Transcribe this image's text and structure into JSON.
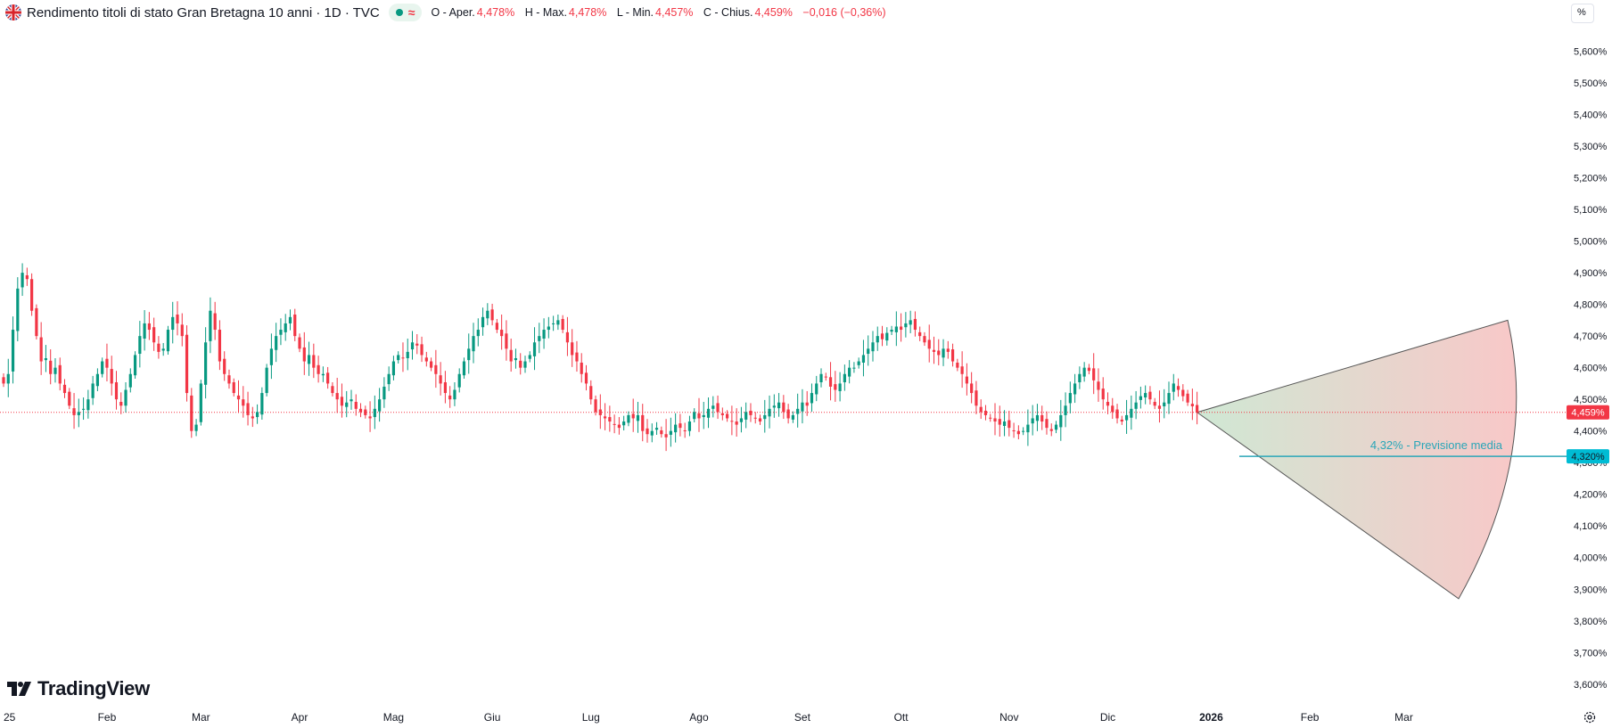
{
  "header": {
    "title": "Rendimento titoli di stato Gran Bretagna 10 anni · 1D · TVC",
    "approx_symbol": "≈",
    "ohlc": {
      "open_label": "O - Aper.",
      "open_value": "4,478%",
      "high_label": "H - Max.",
      "high_value": "4,478%",
      "low_label": "L - Min.",
      "low_value": "4,457%",
      "close_label": "C - Chius.",
      "close_value": "4,459%",
      "change": "−0,016 (−0,36%)"
    }
  },
  "unit_button": "%",
  "brand": "TradingView",
  "colors": {
    "up": "#089981",
    "down": "#f23645",
    "forecast": "#2aa6b8",
    "label_bg": "#00bcd4"
  },
  "chart_data": {
    "type": "candlestick",
    "y_axis": {
      "min": 3.55,
      "max": 5.65,
      "ticks": [
        "5,600%",
        "5,500%",
        "5,400%",
        "5,300%",
        "5,200%",
        "5,100%",
        "5,000%",
        "4,900%",
        "4,800%",
        "4,700%",
        "4,600%",
        "4,500%",
        "4,400%",
        "4,300%",
        "4,200%",
        "4,100%",
        "4,000%",
        "3,900%",
        "3,800%",
        "3,700%",
        "3,600%"
      ]
    },
    "x_axis": {
      "labels": [
        {
          "text": "25",
          "pos": 0
        },
        {
          "text": "Feb",
          "pos": 22
        },
        {
          "text": "Mar",
          "pos": 42
        },
        {
          "text": "Apr",
          "pos": 63
        },
        {
          "text": "Mag",
          "pos": 83
        },
        {
          "text": "Giu",
          "pos": 104
        },
        {
          "text": "Lug",
          "pos": 125
        },
        {
          "text": "Ago",
          "pos": 148
        },
        {
          "text": "Set",
          "pos": 170
        },
        {
          "text": "Ott",
          "pos": 191
        },
        {
          "text": "Nov",
          "pos": 214
        },
        {
          "text": "Dic",
          "pos": 235
        },
        {
          "text": "2026",
          "pos": 257
        },
        {
          "text": "Feb",
          "pos": 278
        },
        {
          "text": "Mar",
          "pos": 298
        }
      ],
      "max_index": 322
    },
    "closes": [
      4.55,
      4.58,
      4.72,
      4.85,
      4.9,
      4.88,
      4.78,
      4.7,
      4.62,
      4.63,
      4.58,
      4.6,
      4.55,
      4.52,
      4.48,
      4.45,
      4.46,
      4.47,
      4.5,
      4.55,
      4.58,
      4.62,
      4.6,
      4.55,
      4.5,
      4.48,
      4.53,
      4.58,
      4.64,
      4.7,
      4.74,
      4.72,
      4.68,
      4.65,
      4.66,
      4.72,
      4.76,
      4.74,
      4.7,
      4.52,
      4.4,
      4.42,
      4.55,
      4.68,
      4.78,
      4.72,
      4.62,
      4.58,
      4.55,
      4.52,
      4.5,
      4.48,
      4.45,
      4.44,
      4.46,
      4.52,
      4.6,
      4.66,
      4.7,
      4.72,
      4.74,
      4.76,
      4.7,
      4.66,
      4.62,
      4.64,
      4.6,
      4.58,
      4.58,
      4.55,
      4.52,
      4.5,
      4.48,
      4.49,
      4.5,
      4.47,
      4.46,
      4.45,
      4.44,
      4.47,
      4.5,
      4.54,
      4.58,
      4.62,
      4.64,
      4.63,
      4.65,
      4.68,
      4.67,
      4.64,
      4.62,
      4.6,
      4.58,
      4.55,
      4.52,
      4.5,
      4.53,
      4.58,
      4.62,
      4.66,
      4.7,
      4.72,
      4.76,
      4.78,
      4.75,
      4.72,
      4.7,
      4.66,
      4.62,
      4.63,
      4.6,
      4.62,
      4.64,
      4.68,
      4.7,
      4.72,
      4.73,
      4.74,
      4.75,
      4.72,
      4.68,
      4.64,
      4.62,
      4.58,
      4.55,
      4.5,
      4.46,
      4.45,
      4.44,
      4.43,
      4.42,
      4.41,
      4.43,
      4.45,
      4.44,
      4.45,
      4.4,
      4.39,
      4.4,
      4.41,
      4.39,
      4.38,
      4.4,
      4.42,
      4.41,
      4.4,
      4.43,
      4.46,
      4.44,
      4.45,
      4.47,
      4.48,
      4.46,
      4.45,
      4.44,
      4.43,
      4.42,
      4.44,
      4.46,
      4.45,
      4.44,
      4.43,
      4.45,
      4.47,
      4.48,
      4.49,
      4.46,
      4.44,
      4.45,
      4.47,
      4.49,
      4.48,
      4.52,
      4.55,
      4.58,
      4.57,
      4.54,
      4.53,
      4.55,
      4.58,
      4.6,
      4.6,
      4.62,
      4.64,
      4.66,
      4.68,
      4.7,
      4.69,
      4.71,
      4.72,
      4.73,
      4.72,
      4.74,
      4.75,
      4.72,
      4.7,
      4.68,
      4.66,
      4.65,
      4.64,
      4.66,
      4.65,
      4.62,
      4.6,
      4.58,
      4.55,
      4.52,
      4.48,
      4.46,
      4.45,
      4.44,
      4.43,
      4.42,
      4.43,
      4.41,
      4.4,
      4.39,
      4.4,
      4.42,
      4.44,
      4.45,
      4.43,
      4.41,
      4.4,
      4.42,
      4.45,
      4.48,
      4.52,
      4.55,
      4.58,
      4.6,
      4.59,
      4.56,
      4.53,
      4.5,
      4.48,
      4.46,
      4.44,
      4.43,
      4.45,
      4.47,
      4.49,
      4.51,
      4.52,
      4.5,
      4.48,
      4.47,
      4.49,
      4.52,
      4.55,
      4.53,
      4.51,
      4.49,
      4.478,
      4.459
    ],
    "forecast": {
      "label": "4,32% - Previsione media",
      "average": 4.32,
      "high": 4.75,
      "low": 3.87,
      "end_index": 322,
      "last_price": 4.459,
      "last_price_label": "4,459%",
      "average_label": "4,320%"
    }
  }
}
